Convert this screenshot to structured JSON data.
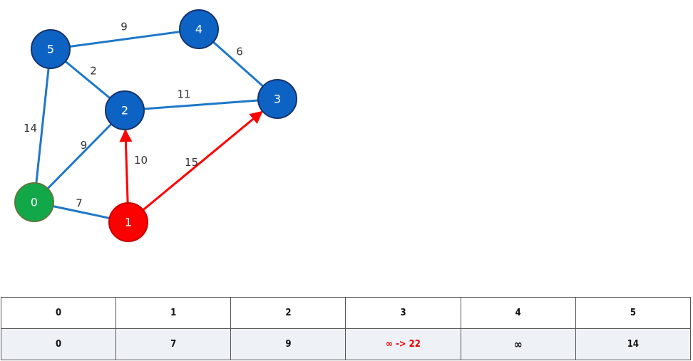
{
  "graph": {
    "nodes": [
      {
        "id": "0",
        "label": "0",
        "state": "source",
        "fill": "#12a84a",
        "stroke": "#5a7a3a"
      },
      {
        "id": "1",
        "label": "1",
        "state": "current",
        "fill": "#ff0000",
        "stroke": "#c80000"
      },
      {
        "id": "2",
        "label": "2",
        "state": "default",
        "fill": "#0c63c4",
        "stroke": "#17326b"
      },
      {
        "id": "3",
        "label": "3",
        "state": "default",
        "fill": "#0c63c4",
        "stroke": "#17326b"
      },
      {
        "id": "4",
        "label": "4",
        "state": "default",
        "fill": "#0c63c4",
        "stroke": "#17326b"
      },
      {
        "id": "5",
        "label": "5",
        "state": "default",
        "fill": "#0c63c4",
        "stroke": "#17326b"
      }
    ],
    "edges": [
      {
        "from": "5",
        "to": "4",
        "weight": "9",
        "state": "default"
      },
      {
        "from": "4",
        "to": "3",
        "weight": "6",
        "state": "default"
      },
      {
        "from": "5",
        "to": "2",
        "weight": "2",
        "state": "default"
      },
      {
        "from": "2",
        "to": "3",
        "weight": "11",
        "state": "default"
      },
      {
        "from": "5",
        "to": "0",
        "weight": "14",
        "state": "default"
      },
      {
        "from": "0",
        "to": "2",
        "weight": "9",
        "state": "default"
      },
      {
        "from": "0",
        "to": "1",
        "weight": "7",
        "state": "default"
      },
      {
        "from": "1",
        "to": "2",
        "weight": "10",
        "state": "relaxing"
      },
      {
        "from": "1",
        "to": "3",
        "weight": "15",
        "state": "relaxing"
      }
    ],
    "colors": {
      "edge_default": "#1e78c8",
      "edge_relaxing": "#ff0000"
    }
  },
  "distance_table": {
    "headers": [
      "0",
      "1",
      "2",
      "3",
      "4",
      "5"
    ],
    "values": [
      {
        "text": "0"
      },
      {
        "text": "7"
      },
      {
        "text": "9"
      },
      {
        "text": "∞ -> 22",
        "updated": true
      },
      {
        "text": "∞"
      },
      {
        "text": "14"
      }
    ],
    "colors": {
      "updated_text": "#e60000",
      "value_row_bg": "#eef2f6"
    }
  }
}
